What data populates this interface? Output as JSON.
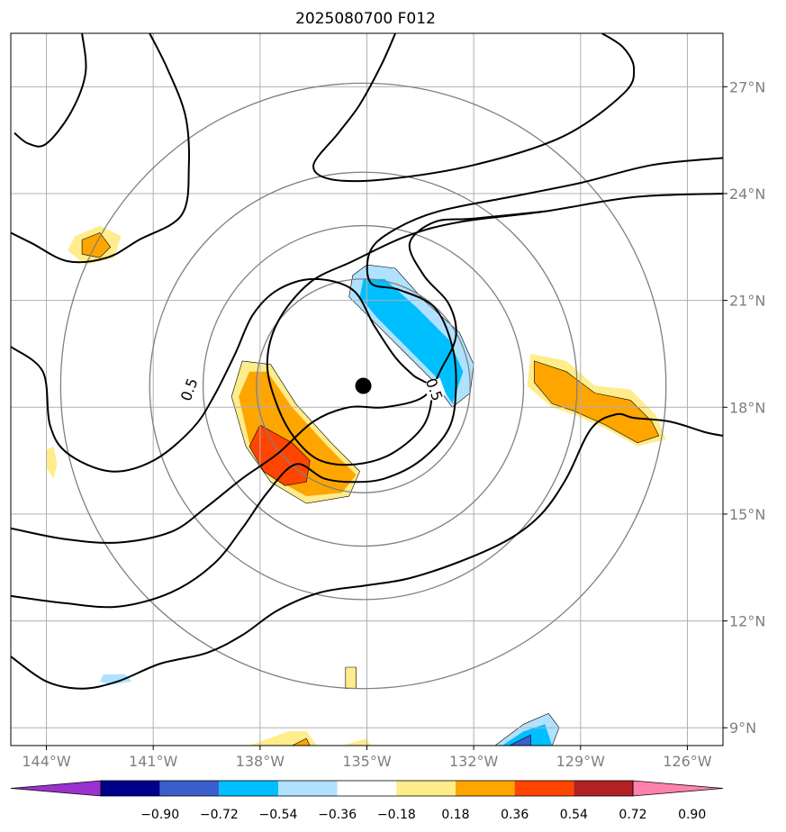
{
  "chart_data": {
    "type": "contour-map",
    "title": "2025080700 F012",
    "xlim": [
      -145,
      -125
    ],
    "ylim": [
      8.5,
      28.5
    ],
    "xticks": [
      {
        "value": -144,
        "label": "144°W"
      },
      {
        "value": -141,
        "label": "141°W"
      },
      {
        "value": -138,
        "label": "138°W"
      },
      {
        "value": -135,
        "label": "135°W"
      },
      {
        "value": -132,
        "label": "132°W"
      },
      {
        "value": -129,
        "label": "129°W"
      },
      {
        "value": -126,
        "label": "126°W"
      }
    ],
    "yticks": [
      {
        "value": 9,
        "label": "9°N"
      },
      {
        "value": 12,
        "label": "12°N"
      },
      {
        "value": 15,
        "label": "15°N"
      },
      {
        "value": 18,
        "label": "18°N"
      },
      {
        "value": 21,
        "label": "21°N"
      },
      {
        "value": 24,
        "label": "24°N"
      },
      {
        "value": 27,
        "label": "27°N"
      }
    ],
    "grid": true,
    "storm_center": {
      "lon": -135.1,
      "lat": 18.6
    },
    "range_rings_deg": [
      3,
      4.5,
      6,
      8.5
    ],
    "contour_labels": [
      {
        "text": "0.5",
        "lon": -140.0,
        "lat": 18.5,
        "angle": -70
      },
      {
        "text": "0.5",
        "lon": -133.1,
        "lat": 18.5,
        "angle": 70
      }
    ],
    "black_contours": [
      [
        [
          -144.9,
          25.7
        ],
        [
          -144.5,
          25.4
        ],
        [
          -144.0,
          25.4
        ],
        [
          -143.3,
          26.3
        ],
        [
          -142.9,
          27.4
        ],
        [
          -143.0,
          28.5
        ]
      ],
      [
        [
          -141.1,
          28.5
        ],
        [
          -140.6,
          27.5
        ],
        [
          -140.1,
          26.2
        ],
        [
          -140.0,
          24.8
        ],
        [
          -140.2,
          23.4
        ],
        [
          -141.4,
          22.7
        ],
        [
          -142.3,
          22.2
        ],
        [
          -143.4,
          22.1
        ],
        [
          -144.4,
          22.6
        ],
        [
          -145.0,
          22.9
        ]
      ],
      [
        [
          -134.2,
          28.5
        ],
        [
          -134.6,
          27.6
        ],
        [
          -135.2,
          26.5
        ],
        [
          -135.8,
          25.7
        ],
        [
          -136.5,
          24.8
        ],
        [
          -136.0,
          24.4
        ],
        [
          -134.5,
          24.4
        ],
        [
          -132.0,
          24.8
        ],
        [
          -129.5,
          25.6
        ],
        [
          -127.8,
          26.8
        ],
        [
          -127.5,
          27.5
        ],
        [
          -127.8,
          28.1
        ],
        [
          -128.4,
          28.5
        ]
      ],
      [
        [
          -145.0,
          19.7
        ],
        [
          -144.1,
          19.0
        ],
        [
          -143.9,
          17.5
        ],
        [
          -143.4,
          16.7
        ],
        [
          -142.2,
          16.2
        ],
        [
          -141.0,
          16.5
        ],
        [
          -139.9,
          17.4
        ],
        [
          -139.3,
          18.3
        ],
        [
          -138.7,
          19.5
        ],
        [
          -138.2,
          20.6
        ],
        [
          -137.5,
          21.3
        ],
        [
          -136.5,
          21.6
        ],
        [
          -135.4,
          21.3
        ],
        [
          -134.8,
          20.3
        ],
        [
          -134.2,
          19.4
        ],
        [
          -133.7,
          18.9
        ],
        [
          -133.2,
          18.5
        ],
        [
          -133.4,
          17.5
        ],
        [
          -134.3,
          16.7
        ],
        [
          -135.3,
          16.4
        ],
        [
          -136.3,
          16.5
        ],
        [
          -137.0,
          17.1
        ],
        [
          -137.5,
          18.0
        ],
        [
          -137.8,
          19.2
        ],
        [
          -137.5,
          20.4
        ],
        [
          -136.6,
          21.5
        ],
        [
          -135.4,
          22.1
        ],
        [
          -133.9,
          22.8
        ],
        [
          -132.4,
          23.2
        ],
        [
          -130.0,
          23.5
        ],
        [
          -127.5,
          23.9
        ],
        [
          -125.0,
          24.0
        ]
      ],
      [
        [
          -145.0,
          12.7
        ],
        [
          -143.5,
          12.5
        ],
        [
          -142.0,
          12.4
        ],
        [
          -140.5,
          12.8
        ],
        [
          -139.3,
          13.6
        ],
        [
          -138.5,
          14.6
        ],
        [
          -137.8,
          15.6
        ],
        [
          -137.0,
          16.4
        ],
        [
          -136.2,
          16.0
        ],
        [
          -135.4,
          15.9
        ],
        [
          -134.5,
          16.0
        ],
        [
          -133.5,
          16.5
        ],
        [
          -132.7,
          17.4
        ],
        [
          -132.5,
          18.5
        ],
        [
          -132.6,
          19.7
        ],
        [
          -133.1,
          20.8
        ],
        [
          -134.1,
          21.3
        ],
        [
          -134.9,
          21.5
        ],
        [
          -134.9,
          22.4
        ],
        [
          -134.2,
          23.0
        ],
        [
          -133.0,
          23.5
        ],
        [
          -131.0,
          23.9
        ],
        [
          -129.0,
          24.3
        ],
        [
          -127.0,
          24.8
        ],
        [
          -125.0,
          25.0
        ]
      ],
      [
        [
          -145.0,
          14.6
        ],
        [
          -143.5,
          14.3
        ],
        [
          -142.0,
          14.2
        ],
        [
          -140.5,
          14.5
        ],
        [
          -139.5,
          15.2
        ],
        [
          -138.5,
          16.0
        ],
        [
          -137.5,
          16.7
        ],
        [
          -136.5,
          17.6
        ],
        [
          -135.5,
          18.0
        ],
        [
          -134.5,
          18.0
        ],
        [
          -133.4,
          18.3
        ],
        [
          -132.9,
          19.1
        ],
        [
          -132.5,
          20.0
        ],
        [
          -132.7,
          20.9
        ],
        [
          -133.4,
          21.7
        ],
        [
          -133.8,
          22.6
        ],
        [
          -133.1,
          23.2
        ],
        [
          -132.0,
          23.3
        ],
        [
          -130.0,
          23.5
        ]
      ],
      [
        [
          -145.0,
          11.0
        ],
        [
          -144.0,
          10.3
        ],
        [
          -143.0,
          10.1
        ],
        [
          -142.0,
          10.3
        ],
        [
          -140.8,
          10.8
        ],
        [
          -139.5,
          11.1
        ],
        [
          -138.5,
          11.6
        ],
        [
          -137.5,
          12.3
        ],
        [
          -136.3,
          12.8
        ],
        [
          -135.0,
          13.0
        ],
        [
          -133.8,
          13.2
        ],
        [
          -132.3,
          13.7
        ],
        [
          -131.0,
          14.3
        ],
        [
          -130.1,
          15.0
        ],
        [
          -129.4,
          16.0
        ],
        [
          -128.7,
          17.4
        ],
        [
          -128.0,
          17.8
        ],
        [
          -127.5,
          17.7
        ],
        [
          -126.5,
          17.6
        ],
        [
          -125.5,
          17.3
        ],
        [
          -125.0,
          17.2
        ]
      ]
    ],
    "fill_colors": [
      "#9a32cd",
      "#00008b",
      "#3a5fcd",
      "#00bfff",
      "#b0e2ff",
      "#ffffff",
      "#ffec8b",
      "#ffa500",
      "#ff4500",
      "#b22222",
      "#ff82ab"
    ],
    "fill_regions": [
      {
        "color": "#b0e2ff",
        "points": [
          [
            -135.4,
            21.7
          ],
          [
            -135.0,
            22.0
          ],
          [
            -134.2,
            21.9
          ],
          [
            -133.4,
            21.0
          ],
          [
            -132.4,
            20.1
          ],
          [
            -132.0,
            19.2
          ],
          [
            -132.1,
            18.4
          ],
          [
            -132.6,
            18.0
          ],
          [
            -133.2,
            18.8
          ],
          [
            -134.0,
            19.6
          ],
          [
            -134.8,
            20.4
          ],
          [
            -135.5,
            21.1
          ]
        ]
      },
      {
        "color": "#00bfff",
        "points": [
          [
            -135.1,
            21.6
          ],
          [
            -134.5,
            21.6
          ],
          [
            -133.6,
            20.8
          ],
          [
            -132.7,
            19.9
          ],
          [
            -132.3,
            19.0
          ],
          [
            -132.6,
            18.1
          ],
          [
            -133.1,
            18.9
          ],
          [
            -133.9,
            19.7
          ],
          [
            -134.7,
            20.5
          ],
          [
            -135.2,
            21.1
          ]
        ]
      },
      {
        "color": "#ffec8b",
        "points": [
          [
            -138.5,
            19.3
          ],
          [
            -137.7,
            19.2
          ],
          [
            -137.0,
            18.1
          ],
          [
            -136.0,
            17.0
          ],
          [
            -135.2,
            16.2
          ],
          [
            -135.5,
            15.5
          ],
          [
            -136.7,
            15.3
          ],
          [
            -137.7,
            15.9
          ],
          [
            -138.4,
            16.9
          ],
          [
            -138.8,
            18.3
          ]
        ]
      },
      {
        "color": "#ffa500",
        "points": [
          [
            -138.3,
            19.0
          ],
          [
            -137.8,
            19.0
          ],
          [
            -137.1,
            18.0
          ],
          [
            -136.1,
            16.9
          ],
          [
            -135.3,
            16.1
          ],
          [
            -135.7,
            15.6
          ],
          [
            -136.7,
            15.5
          ],
          [
            -137.6,
            16.0
          ],
          [
            -138.3,
            17.0
          ],
          [
            -138.6,
            18.3
          ]
        ]
      },
      {
        "color": "#ff4500",
        "points": [
          [
            -138.0,
            17.5
          ],
          [
            -137.1,
            17.0
          ],
          [
            -136.6,
            16.5
          ],
          [
            -136.7,
            15.9
          ],
          [
            -137.3,
            15.8
          ],
          [
            -137.9,
            16.2
          ],
          [
            -138.3,
            16.9
          ]
        ]
      },
      {
        "color": "#ffec8b",
        "points": [
          [
            -130.4,
            19.5
          ],
          [
            -129.4,
            19.3
          ],
          [
            -128.6,
            18.6
          ],
          [
            -127.6,
            18.5
          ],
          [
            -126.9,
            17.8
          ],
          [
            -126.6,
            17.1
          ],
          [
            -127.4,
            16.9
          ],
          [
            -128.3,
            17.4
          ],
          [
            -129.2,
            17.8
          ],
          [
            -129.8,
            18.0
          ],
          [
            -130.5,
            18.6
          ]
        ]
      },
      {
        "color": "#ffa500",
        "points": [
          [
            -130.3,
            19.3
          ],
          [
            -129.4,
            19.0
          ],
          [
            -128.6,
            18.4
          ],
          [
            -127.6,
            18.2
          ],
          [
            -127.0,
            17.6
          ],
          [
            -126.8,
            17.2
          ],
          [
            -127.4,
            17.0
          ],
          [
            -128.3,
            17.5
          ],
          [
            -129.2,
            17.9
          ],
          [
            -129.8,
            18.1
          ],
          [
            -130.3,
            18.7
          ]
        ]
      },
      {
        "color": "#ffec8b",
        "points": [
          [
            -143.2,
            22.8
          ],
          [
            -142.5,
            23.1
          ],
          [
            -141.9,
            22.8
          ],
          [
            -142.1,
            22.2
          ],
          [
            -142.9,
            22.0
          ],
          [
            -143.4,
            22.4
          ]
        ]
      },
      {
        "color": "#ffa500",
        "points": [
          [
            -143.0,
            22.7
          ],
          [
            -142.5,
            22.9
          ],
          [
            -142.2,
            22.5
          ],
          [
            -142.5,
            22.2
          ],
          [
            -143.0,
            22.3
          ]
        ]
      },
      {
        "color": "#ffec8b",
        "points": [
          [
            -144.0,
            16.8
          ],
          [
            -143.8,
            16.9
          ],
          [
            -143.7,
            16.4
          ],
          [
            -143.8,
            16.0
          ],
          [
            -144.0,
            16.3
          ]
        ]
      },
      {
        "color": "#ffec8b",
        "points": [
          [
            -135.6,
            10.7
          ],
          [
            -135.3,
            10.7
          ],
          [
            -135.3,
            10.1
          ],
          [
            -135.6,
            10.1
          ]
        ]
      },
      {
        "color": "#b0e2ff",
        "points": [
          [
            -142.4,
            10.5
          ],
          [
            -141.8,
            10.5
          ],
          [
            -141.6,
            10.3
          ],
          [
            -142.2,
            10.2
          ],
          [
            -142.5,
            10.3
          ]
        ]
      },
      {
        "color": "#b0e2ff",
        "points": [
          [
            -131.4,
            8.5
          ],
          [
            -130.6,
            9.1
          ],
          [
            -129.9,
            9.4
          ],
          [
            -129.6,
            9.0
          ],
          [
            -129.8,
            8.5
          ]
        ]
      },
      {
        "color": "#00bfff",
        "points": [
          [
            -131.2,
            8.5
          ],
          [
            -130.6,
            8.9
          ],
          [
            -130.0,
            9.1
          ],
          [
            -129.8,
            8.5
          ]
        ]
      },
      {
        "color": "#3a5fcd",
        "points": [
          [
            -131.0,
            8.5
          ],
          [
            -130.4,
            8.8
          ],
          [
            -130.4,
            8.5
          ]
        ]
      },
      {
        "color": "#ffec8b",
        "points": [
          [
            -138.3,
            8.5
          ],
          [
            -137.2,
            8.9
          ],
          [
            -136.7,
            8.9
          ],
          [
            -136.4,
            8.5
          ]
        ]
      },
      {
        "color": "#ffa500",
        "points": [
          [
            -137.1,
            8.5
          ],
          [
            -136.7,
            8.7
          ],
          [
            -136.6,
            8.5
          ]
        ]
      },
      {
        "color": "#ffec8b",
        "points": [
          [
            -135.7,
            8.5
          ],
          [
            -135.0,
            8.7
          ],
          [
            -134.9,
            8.5
          ]
        ]
      }
    ],
    "colorbar": {
      "ticks": [
        "−0.90",
        "−0.72",
        "−0.54",
        "−0.36",
        "−0.18",
        "0.18",
        "0.36",
        "0.54",
        "0.72",
        "0.90"
      ]
    }
  }
}
